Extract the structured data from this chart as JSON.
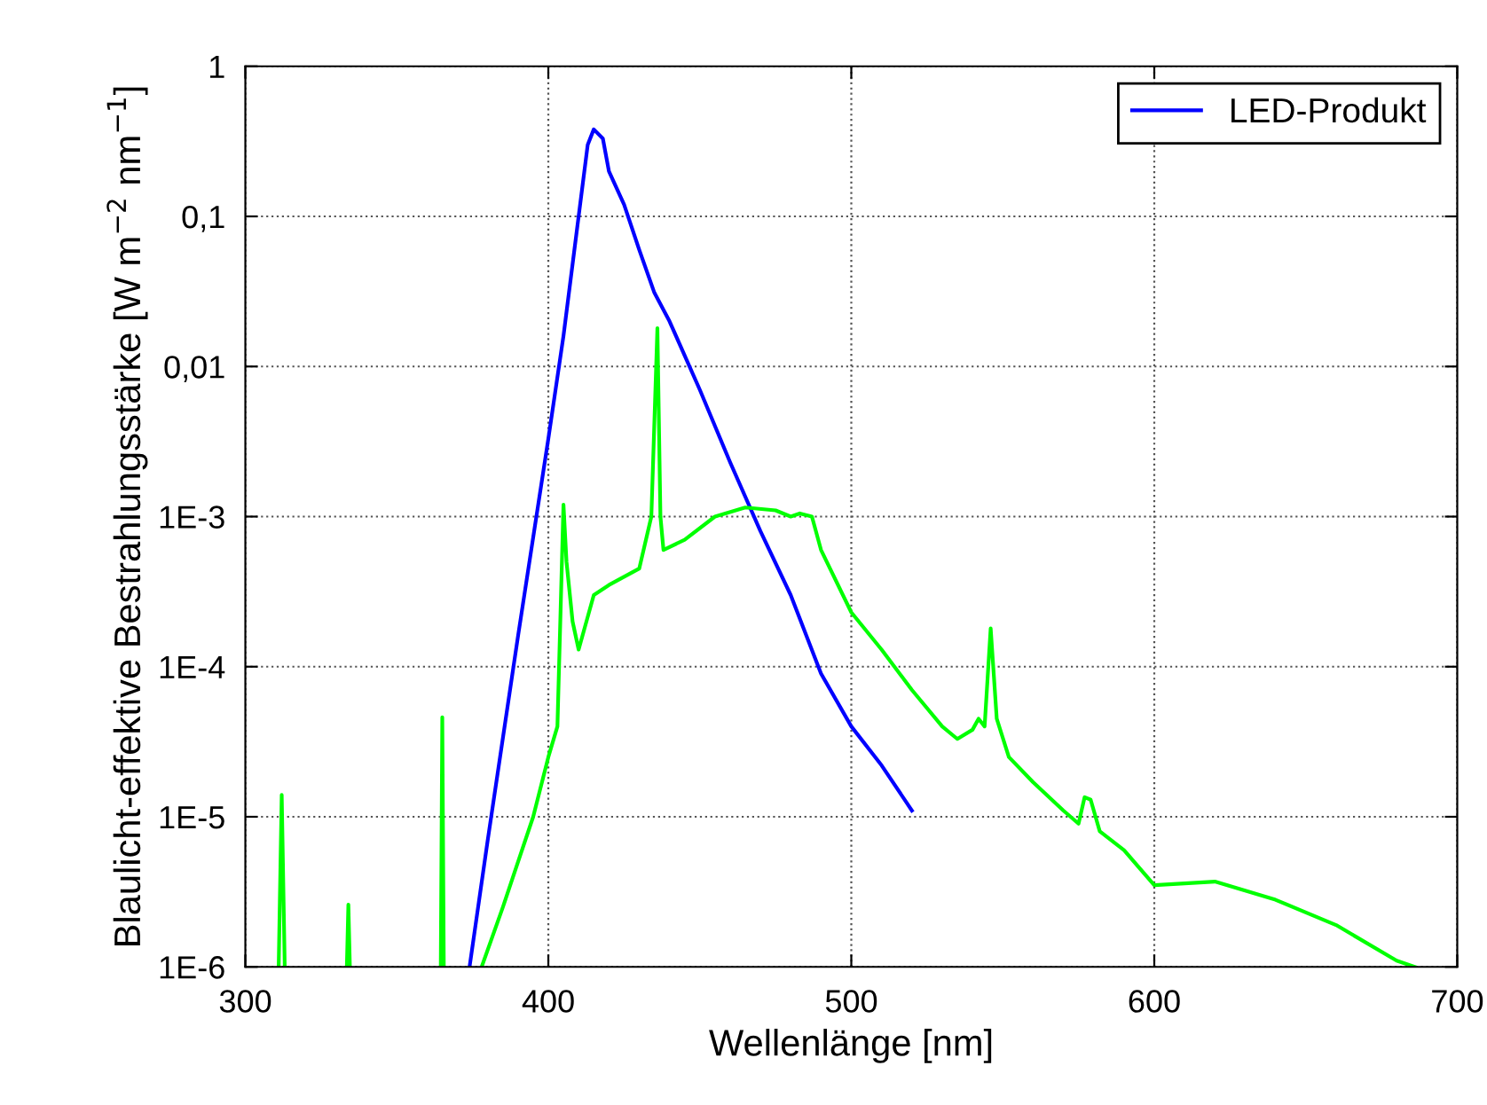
{
  "chart_data": {
    "type": "line",
    "xlabel": "Wellenlänge [nm]",
    "ylabel": "Blaulicht-effektive Bestrahlungsstärke [W m$^{−2}$ nm$^{−1}$]",
    "xlim": [
      300,
      700
    ],
    "xticks": [
      300,
      400,
      500,
      600,
      700
    ],
    "ylim": [
      1e-06,
      1
    ],
    "yticks": [
      {
        "value": 1e-06,
        "label": "1E-6"
      },
      {
        "value": 1e-05,
        "label": "1E-5"
      },
      {
        "value": 0.0001,
        "label": "1E-4"
      },
      {
        "value": 0.001,
        "label": "1E-3"
      },
      {
        "value": 0.01,
        "label": "0,01"
      },
      {
        "value": 0.1,
        "label": "0,1"
      },
      {
        "value": 1,
        "label": "1"
      }
    ],
    "log": "y",
    "grid": true,
    "legend": "top right",
    "line_style": "solid",
    "marker": "none",
    "series": [
      {
        "name": "LED-Produkt",
        "color": "#0000ff",
        "x": [
          374,
          380,
          390,
          400,
          405,
          410,
          413,
          415,
          418,
          420,
          425,
          430,
          435,
          440,
          450,
          460,
          470,
          480,
          490,
          500,
          510,
          520
        ],
        "values": [
          1e-06,
          7e-06,
          0.00016,
          0.0033,
          0.016,
          0.1,
          0.3,
          0.38,
          0.33,
          0.2,
          0.12,
          0.06,
          0.031,
          0.02,
          0.007,
          0.0023,
          0.0008,
          0.0003,
          9e-05,
          4e-05,
          2.2e-05,
          1.1e-05
        ]
      },
      {
        "color": "#00ff00",
        "x": [
          311,
          312,
          313,
          313.5,
          333.5,
          334,
          334.5,
          335,
          364.5,
          365,
          365.5,
          366,
          378,
          385,
          390,
          395,
          400,
          403,
          405,
          406,
          408,
          410,
          415,
          420,
          430,
          434,
          436,
          437,
          438,
          445,
          455,
          465,
          475,
          480,
          483,
          487,
          490,
          500,
          510,
          520,
          530,
          535,
          540,
          542,
          544,
          546,
          548,
          552,
          560,
          570,
          575,
          577,
          579,
          582,
          590,
          600,
          620,
          640,
          660,
          680,
          686
        ],
        "values": [
          1e-06,
          1.4e-05,
          1e-06,
          null,
          1e-06,
          2.6e-06,
          1e-06,
          null,
          1e-06,
          4.6e-05,
          1e-06,
          null,
          1e-06,
          2.5e-06,
          5e-06,
          1e-05,
          2.5e-05,
          4e-05,
          0.0012,
          0.0005,
          0.0002,
          0.00013,
          0.0003,
          0.00035,
          0.00045,
          0.001,
          0.018,
          0.001,
          0.0006,
          0.0007,
          0.001,
          0.00115,
          0.0011,
          0.001,
          0.00105,
          0.001,
          0.0006,
          0.00023,
          0.00013,
          7e-05,
          4e-05,
          3.3e-05,
          3.8e-05,
          4.5e-05,
          4e-05,
          0.00018,
          4.5e-05,
          2.5e-05,
          1.7e-05,
          1.1e-05,
          9e-06,
          1.35e-05,
          1.3e-05,
          8e-06,
          6e-06,
          3.5e-06,
          3.7e-06,
          2.8e-06,
          1.9e-06,
          1.1e-06,
          1e-06
        ]
      }
    ]
  }
}
